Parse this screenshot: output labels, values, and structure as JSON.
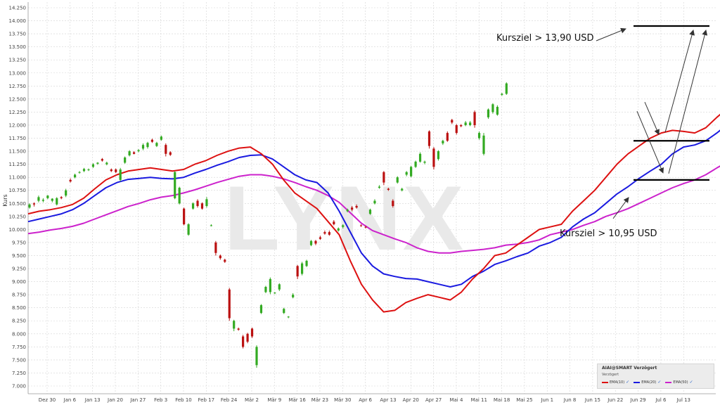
{
  "chart_data": {
    "type": "candlestick",
    "ylabel": "Kurs",
    "ylim": [
      7.0,
      14.25
    ],
    "y_ticks": [
      7.0,
      7.25,
      7.5,
      7.75,
      8.0,
      8.25,
      8.5,
      8.75,
      9.0,
      9.25,
      9.5,
      9.75,
      10.0,
      10.25,
      10.5,
      10.75,
      11.0,
      11.25,
      11.5,
      11.75,
      12.0,
      12.25,
      12.5,
      12.75,
      13.0,
      13.25,
      13.5,
      13.75,
      14.0,
      14.25
    ],
    "y_tick_labels": [
      "7.000",
      "7.250",
      "7.500",
      "7.750",
      "8.000",
      "8.250",
      "8.500",
      "8.750",
      "9.000",
      "9.250",
      "9.500",
      "9.750",
      "10.000",
      "10.250",
      "10.500",
      "10.750",
      "11.000",
      "11.250",
      "11.500",
      "11.750",
      "12.000",
      "12.250",
      "12.500",
      "12.750",
      "13.000",
      "13.250",
      "13.500",
      "13.750",
      "14.000",
      "14.250"
    ],
    "x_tick_labels": [
      "Dez 30",
      "Jan 6",
      "Jan 13",
      "Jan 20",
      "Jan 27",
      "Feb 3",
      "Feb 10",
      "Feb 17",
      "Feb 24",
      "Mär 2",
      "Mär 9",
      "Mär 16",
      "Mär 23",
      "Mär 30",
      "Apr 6",
      "Apr 13",
      "Apr 20",
      "Apr 27",
      "Mai 4",
      "Mai 11",
      "Mai 18",
      "Mai 25",
      "Jun 1",
      "Jun 8",
      "Jun 15",
      "Jun 22",
      "Jun 29",
      "Jul 6",
      "Jul 13"
    ],
    "watermark": "LYNX",
    "candles": [
      [
        10.42,
        10.48,
        10.4,
        10.5
      ],
      [
        10.5,
        10.48,
        10.44,
        10.52
      ],
      [
        10.55,
        10.62,
        10.52,
        10.65
      ],
      [
        10.55,
        10.57,
        10.52,
        10.6
      ],
      [
        10.6,
        10.65,
        10.58,
        10.66
      ],
      [
        10.55,
        10.59,
        10.52,
        10.6
      ],
      [
        10.48,
        10.6,
        10.46,
        10.62
      ],
      [
        10.62,
        10.6,
        10.58,
        10.64
      ],
      [
        10.65,
        10.75,
        10.62,
        10.78
      ],
      [
        10.95,
        10.92,
        10.9,
        10.98
      ],
      [
        11.0,
        11.05,
        10.98,
        11.07
      ],
      [
        11.1,
        11.1,
        11.07,
        11.12
      ],
      [
        11.12,
        11.16,
        11.1,
        11.18
      ],
      [
        11.15,
        11.15,
        11.12,
        11.17
      ],
      [
        11.2,
        11.25,
        11.18,
        11.27
      ],
      [
        11.26,
        11.28,
        11.24,
        11.29
      ],
      [
        11.35,
        11.32,
        11.3,
        11.37
      ],
      [
        11.25,
        11.28,
        11.23,
        11.3
      ],
      [
        11.15,
        11.12,
        11.1,
        11.17
      ],
      [
        11.15,
        11.1,
        11.08,
        11.17
      ],
      [
        10.95,
        11.15,
        10.92,
        11.18
      ],
      [
        11.28,
        11.38,
        11.26,
        11.4
      ],
      [
        11.42,
        11.5,
        11.4,
        11.52
      ],
      [
        11.48,
        11.45,
        11.44,
        11.5
      ],
      [
        11.5,
        11.52,
        11.48,
        11.54
      ],
      [
        11.55,
        11.62,
        11.52,
        11.65
      ],
      [
        11.58,
        11.66,
        11.55,
        11.68
      ],
      [
        11.72,
        11.68,
        11.66,
        11.74
      ],
      [
        11.6,
        11.66,
        11.58,
        11.68
      ],
      [
        11.72,
        11.78,
        11.7,
        11.8
      ],
      [
        11.62,
        11.45,
        11.4,
        11.65
      ],
      [
        11.48,
        11.43,
        11.41,
        11.5
      ],
      [
        10.6,
        11.1,
        10.58,
        11.12
      ],
      [
        10.5,
        10.8,
        10.48,
        10.82
      ],
      [
        10.4,
        10.1,
        10.08,
        10.42
      ],
      [
        9.9,
        10.1,
        9.88,
        10.12
      ],
      [
        10.4,
        10.5,
        10.38,
        10.52
      ],
      [
        10.55,
        10.45,
        10.42,
        10.58
      ],
      [
        10.5,
        10.4,
        10.38,
        10.52
      ],
      [
        10.45,
        10.58,
        10.42,
        10.62
      ],
      [
        10.08,
        10.08,
        10.06,
        10.1
      ],
      [
        9.75,
        9.55,
        9.5,
        9.78
      ],
      [
        9.5,
        9.45,
        9.42,
        9.52
      ],
      [
        9.42,
        9.38,
        9.36,
        9.44
      ],
      [
        8.85,
        8.3,
        8.25,
        8.88
      ],
      [
        8.1,
        8.25,
        8.05,
        8.27
      ],
      [
        8.1,
        8.08,
        8.06,
        8.12
      ],
      [
        7.95,
        7.75,
        7.72,
        7.98
      ],
      [
        8.0,
        7.85,
        7.82,
        8.02
      ],
      [
        8.1,
        7.95,
        7.92,
        8.12
      ],
      [
        7.4,
        7.75,
        7.35,
        7.78
      ],
      [
        8.4,
        8.55,
        8.38,
        8.57
      ],
      [
        8.8,
        8.9,
        8.78,
        8.92
      ],
      [
        8.8,
        9.05,
        8.76,
        9.08
      ],
      [
        8.78,
        8.79,
        8.76,
        8.8
      ],
      [
        8.85,
        8.95,
        8.82,
        8.97
      ],
      [
        8.4,
        8.48,
        8.38,
        8.5
      ],
      [
        8.32,
        8.33,
        8.3,
        8.34
      ],
      [
        8.7,
        8.75,
        8.68,
        8.78
      ],
      [
        9.3,
        9.1,
        9.05,
        9.32
      ],
      [
        9.15,
        9.35,
        9.12,
        9.38
      ],
      [
        9.3,
        9.4,
        9.28,
        9.42
      ],
      [
        9.7,
        9.78,
        9.68,
        9.8
      ],
      [
        9.78,
        9.73,
        9.7,
        9.8
      ],
      [
        9.85,
        9.82,
        9.8,
        9.88
      ],
      [
        9.95,
        9.92,
        9.9,
        9.98
      ],
      [
        9.95,
        9.9,
        9.88,
        9.98
      ],
      [
        10.15,
        10.1,
        10.08,
        10.18
      ],
      [
        9.98,
        10.02,
        9.96,
        10.04
      ],
      [
        10.05,
        10.08,
        10.02,
        10.1
      ],
      [
        10.35,
        10.38,
        10.33,
        10.4
      ],
      [
        10.42,
        10.38,
        10.35,
        10.45
      ],
      [
        10.45,
        10.42,
        10.4,
        10.48
      ],
      [
        10.08,
        10.07,
        10.05,
        10.1
      ],
      [
        10.05,
        10.04,
        10.02,
        10.07
      ],
      [
        10.3,
        10.38,
        10.28,
        10.4
      ],
      [
        10.5,
        10.55,
        10.48,
        10.58
      ],
      [
        10.8,
        10.82,
        10.78,
        10.85
      ],
      [
        11.1,
        10.9,
        10.85,
        11.12
      ],
      [
        10.78,
        10.76,
        10.74,
        10.8
      ],
      [
        10.55,
        10.45,
        10.42,
        10.58
      ],
      [
        10.9,
        11.0,
        10.88,
        11.02
      ],
      [
        10.75,
        10.78,
        10.73,
        10.8
      ],
      [
        11.05,
        11.1,
        11.02,
        11.12
      ],
      [
        11.02,
        11.2,
        11.0,
        11.22
      ],
      [
        11.2,
        11.3,
        11.18,
        11.32
      ],
      [
        11.3,
        11.45,
        11.28,
        11.48
      ],
      [
        11.28,
        11.3,
        11.25,
        11.32
      ],
      [
        11.88,
        11.6,
        11.55,
        11.9
      ],
      [
        11.55,
        11.2,
        11.15,
        11.58
      ],
      [
        11.35,
        11.5,
        11.32,
        11.52
      ],
      [
        11.65,
        11.7,
        11.62,
        11.72
      ],
      [
        11.85,
        11.7,
        11.68,
        11.88
      ],
      [
        12.1,
        12.05,
        12.02,
        12.12
      ],
      [
        12.0,
        11.85,
        11.82,
        12.02
      ],
      [
        12.0,
        11.98,
        11.96,
        12.02
      ],
      [
        12.0,
        12.05,
        11.98,
        12.08
      ],
      [
        12.0,
        12.05,
        11.98,
        12.08
      ],
      [
        12.25,
        12.0,
        11.95,
        12.28
      ],
      [
        11.75,
        11.85,
        11.72,
        11.88
      ],
      [
        11.45,
        11.8,
        11.42,
        11.85
      ],
      [
        12.15,
        12.3,
        12.12,
        12.32
      ],
      [
        12.25,
        12.4,
        12.22,
        12.42
      ],
      [
        12.2,
        12.35,
        12.18,
        12.38
      ],
      [
        12.58,
        12.6,
        12.56,
        12.62
      ],
      [
        12.6,
        12.8,
        12.58,
        12.82
      ]
    ],
    "ema10": [
      10.3,
      10.35,
      10.38,
      10.42,
      10.48,
      10.6,
      10.78,
      10.95,
      11.05,
      11.12,
      11.15,
      11.18,
      11.15,
      11.12,
      11.15,
      11.25,
      11.32,
      11.42,
      11.5,
      11.56,
      11.58,
      11.45,
      11.25,
      10.95,
      10.7,
      10.55,
      10.4,
      10.15,
      9.9,
      9.4,
      8.95,
      8.65,
      8.42,
      8.45,
      8.6,
      8.68,
      8.75,
      8.7,
      8.65,
      8.8,
      9.05,
      9.25,
      9.5,
      9.55,
      9.7,
      9.85,
      10.0,
      10.05,
      10.1,
      10.35,
      10.55,
      10.75,
      11.0,
      11.25,
      11.45,
      11.6,
      11.75,
      11.85,
      11.9,
      11.88,
      11.85,
      11.95,
      12.15,
      12.33
    ],
    "ema20": [
      10.15,
      10.2,
      10.25,
      10.3,
      10.38,
      10.5,
      10.65,
      10.8,
      10.9,
      10.96,
      10.98,
      11.0,
      10.98,
      10.97,
      11.0,
      11.08,
      11.15,
      11.23,
      11.3,
      11.38,
      11.42,
      11.43,
      11.35,
      11.2,
      11.05,
      10.95,
      10.9,
      10.7,
      10.35,
      9.95,
      9.55,
      9.3,
      9.15,
      9.1,
      9.06,
      9.05,
      9.0,
      8.95,
      8.9,
      8.95,
      9.1,
      9.2,
      9.33,
      9.4,
      9.48,
      9.55,
      9.68,
      9.75,
      9.85,
      10.05,
      10.2,
      10.32,
      10.5,
      10.68,
      10.82,
      10.98,
      11.12,
      11.25,
      11.45,
      11.58,
      11.62,
      11.7,
      11.85,
      12.02
    ],
    "ema50": [
      9.92,
      9.95,
      9.99,
      10.02,
      10.06,
      10.12,
      10.2,
      10.28,
      10.36,
      10.44,
      10.5,
      10.57,
      10.62,
      10.65,
      10.7,
      10.76,
      10.83,
      10.9,
      10.96,
      11.02,
      11.05,
      11.05,
      11.02,
      10.97,
      10.9,
      10.82,
      10.75,
      10.65,
      10.52,
      10.32,
      10.12,
      9.98,
      9.9,
      9.82,
      9.75,
      9.65,
      9.58,
      9.55,
      9.55,
      9.58,
      9.6,
      9.62,
      9.65,
      9.7,
      9.72,
      9.75,
      9.8,
      9.9,
      9.95,
      10.0,
      10.08,
      10.15,
      10.25,
      10.32,
      10.4,
      10.5,
      10.6,
      10.7,
      10.8,
      10.88,
      10.95,
      11.05,
      11.18,
      11.3
    ],
    "annotations": [
      {
        "text": "Kursziel > 13,90 USD",
        "level": 13.9
      },
      {
        "text": "Kursziel > 10,95 USD",
        "level": 10.95
      }
    ],
    "levels": [
      13.9,
      11.7,
      10.95
    ],
    "legend": {
      "title": "AIAI@SMART Verzögert",
      "subtitle": "Verzögert",
      "items": [
        {
          "name": "EMA(10)",
          "color": "#dd1111"
        },
        {
          "name": "EMA(20)",
          "color": "#1a1ae0"
        },
        {
          "name": "EMA(50)",
          "color": "#cc22cc"
        }
      ]
    },
    "colors": {
      "up": "#33aa22",
      "down": "#bb1111",
      "grid": "#d4d4d4"
    }
  }
}
